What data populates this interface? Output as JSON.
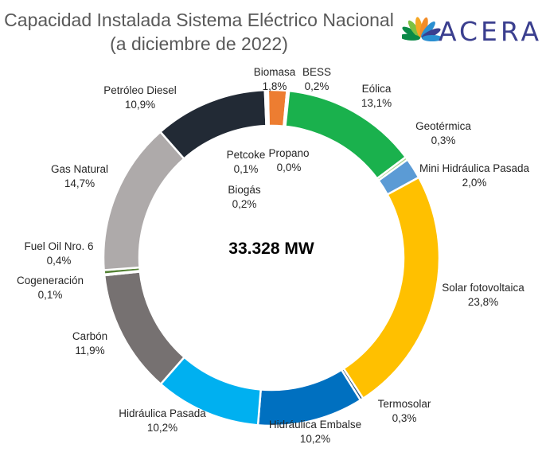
{
  "title_lines": [
    "Capacidad Instalada Sistema Eléctrico Nacional",
    "(a diciembre de 2022)"
  ],
  "logo": {
    "text": "ACERA",
    "colors": [
      "#0a8a47",
      "#7dc142",
      "#f5a623",
      "#f28c28",
      "#2a8fd1",
      "#3b3f8f"
    ]
  },
  "center_label": "33.328 MW",
  "chart_data": {
    "type": "pie",
    "variant": "donut",
    "total_label": "33.328 MW",
    "slices": [
      {
        "name": "Biomasa",
        "value_label": "1,8%",
        "value": 1.8,
        "color": "#ed7d31"
      },
      {
        "name": "BESS",
        "value_label": "0,2%",
        "value": 0.2,
        "color": "#ffffff"
      },
      {
        "name": "Eólica",
        "value_label": "13,1%",
        "value": 13.1,
        "color": "#1ab14d"
      },
      {
        "name": "Geotérmica",
        "value_label": "0,3%",
        "value": 0.3,
        "color": "#a9d18e"
      },
      {
        "name": "Mini Hidráulica Pasada",
        "value_label": "2,0%",
        "value": 2.0,
        "color": "#5b9bd5"
      },
      {
        "name": "Solar fotovoltaica",
        "value_label": "23,8%",
        "value": 23.8,
        "color": "#ffc000"
      },
      {
        "name": "Termosolar",
        "value_label": "0,3%",
        "value": 0.3,
        "color": "#1f4e79"
      },
      {
        "name": "Hidráulica Embalse",
        "value_label": "10,2%",
        "value": 10.2,
        "color": "#0070c0"
      },
      {
        "name": "Hidráulica Pasada",
        "value_label": "10,2%",
        "value": 10.2,
        "color": "#00b0f0"
      },
      {
        "name": "Carbón",
        "value_label": "11,9%",
        "value": 11.9,
        "color": "#767171"
      },
      {
        "name": "Cogeneración",
        "value_label": "0,1%",
        "value": 0.1,
        "color": "#375623"
      },
      {
        "name": "Fuel Oil Nro. 6",
        "value_label": "0,4%",
        "value": 0.4,
        "color": "#548235"
      },
      {
        "name": "Gas Natural",
        "value_label": "14,7%",
        "value": 14.7,
        "color": "#aeaaaa"
      },
      {
        "name": "Petróleo Diesel",
        "value_label": "10,9%",
        "value": 10.9,
        "color": "#222a35"
      },
      {
        "name": "Biogás",
        "value_label": "0,2%",
        "value": 0.2,
        "color": "#bfbfbf"
      },
      {
        "name": "Petcoke",
        "value_label": "0,1%",
        "value": 0.1,
        "color": "#7f7f7f"
      },
      {
        "name": "Propano",
        "value_label": "0,0%",
        "value": 0.0,
        "color": "#d9d9d9"
      }
    ]
  }
}
